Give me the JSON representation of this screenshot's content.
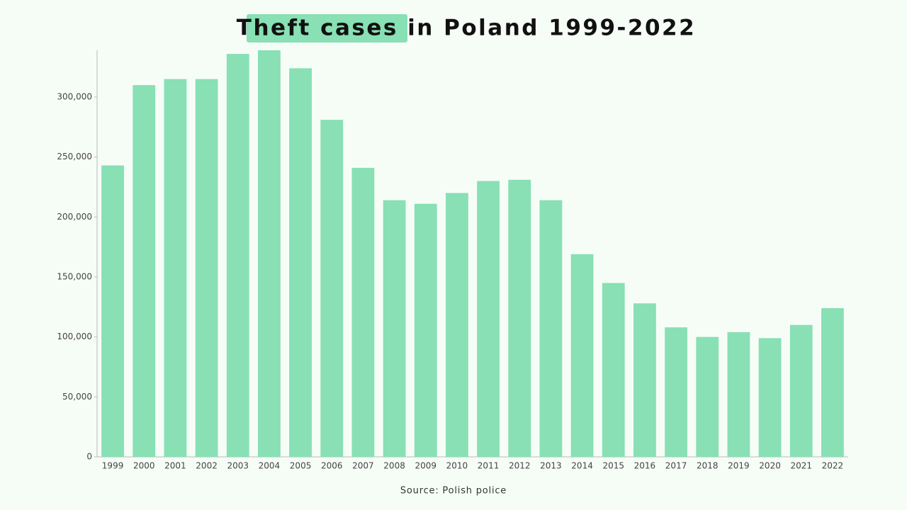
{
  "chart_data": {
    "type": "bar",
    "title": "Theft cases in Poland 1999-2022",
    "categories": [
      "1999",
      "2000",
      "2001",
      "2002",
      "2003",
      "2004",
      "2005",
      "2006",
      "2007",
      "2008",
      "2009",
      "2010",
      "2011",
      "2012",
      "2013",
      "2014",
      "2015",
      "2016",
      "2017",
      "2018",
      "2019",
      "2020",
      "2021",
      "2022"
    ],
    "values": [
      243000,
      310000,
      315000,
      315000,
      336000,
      339000,
      324000,
      281000,
      241000,
      214000,
      211000,
      220000,
      230000,
      231000,
      214000,
      169000,
      145000,
      128000,
      108000,
      100000,
      104000,
      99000,
      110000,
      124000
    ],
    "color": "#88e0b4",
    "ylim": [
      0,
      340000
    ],
    "yticks": [
      0,
      {
        "value": 50000,
        "label": "50,000"
      },
      {
        "value": 100000,
        "label": "100,000"
      },
      {
        "value": 150000,
        "label": "150,000"
      },
      {
        "value": 200000,
        "label": "200,000"
      },
      {
        "value": 250000,
        "label": "250,000"
      },
      {
        "value": 300000,
        "label": "300,000"
      }
    ],
    "grid": false,
    "source": "Source: Polish police"
  }
}
